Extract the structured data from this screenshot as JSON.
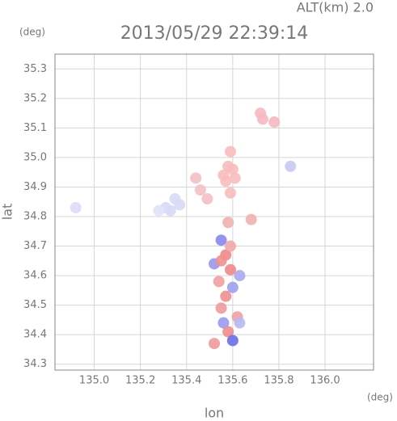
{
  "chart_data": {
    "type": "scatter",
    "title": "2013/05/29 22:39:14",
    "subtitle": "ALT(km) 2.0",
    "y_unit": "(deg)",
    "x_unit": "(deg)",
    "ylabel": "lat",
    "xlabel": "lon",
    "xlim": [
      134.83,
      136.21
    ],
    "ylim": [
      34.28,
      35.35
    ],
    "xticks": [
      {
        "value": 135,
        "label": "135.0"
      },
      135.2,
      135.4,
      135.6,
      135.8,
      {
        "value": 136,
        "label": "136.0"
      }
    ],
    "yticks": [
      34.3,
      34.4,
      34.5,
      34.6,
      34.7,
      34.8,
      34.9,
      {
        "value": 35,
        "label": "35.0"
      },
      35.1,
      35.2,
      35.3
    ],
    "grid": true,
    "x": [
      135.58,
      135.59,
      135.57,
      135.61,
      135.59,
      135.56,
      135.6,
      135.72,
      135.73,
      135.78,
      135.44,
      135.46,
      135.49,
      135.35,
      135.31,
      135.33,
      135.37,
      135.28,
      135.55,
      135.57,
      135.52,
      135.59,
      135.54,
      135.6,
      135.57,
      135.55,
      135.62,
      135.56,
      135.58,
      135.6,
      135.52,
      135.63,
      135.55,
      135.59,
      135.63,
      135.68,
      135.58,
      134.92,
      135.85
    ],
    "y": [
      34.97,
      35.02,
      34.92,
      34.93,
      34.88,
      34.94,
      34.96,
      35.15,
      35.13,
      35.12,
      34.93,
      34.89,
      34.86,
      34.86,
      34.83,
      34.82,
      34.84,
      34.82,
      34.72,
      34.67,
      34.64,
      34.62,
      34.58,
      34.56,
      34.53,
      34.49,
      34.46,
      34.44,
      34.41,
      34.38,
      34.37,
      34.44,
      34.65,
      34.7,
      34.6,
      34.79,
      34.78,
      34.83,
      34.97
    ],
    "colors": [
      "#f9bcbc",
      "#f9bcbc",
      "#f9bcbc",
      "#f9bcbc",
      "#f9bcbc",
      "#f9bcbc",
      "#f9bcbc",
      "#f6b8c0",
      "#f6b8c0",
      "#f4b8c0",
      "#f3c0c4",
      "#f3c0c4",
      "#f3c0c4",
      "#d8daf7",
      "#d8daf7",
      "#d8daf7",
      "#d8daf7",
      "#e0e2f8",
      "#8888ee",
      "#ee8888",
      "#9898ef",
      "#ee8888",
      "#f0a0a0",
      "#a0a0f0",
      "#ee9090",
      "#ef9a9a",
      "#f0a0a0",
      "#9999ee",
      "#ee8c8c",
      "#6b6be6",
      "#ee9a9a",
      "#b8b8f2",
      "#ef9090",
      "#f0a8a8",
      "#aaaaf0",
      "#f0b0b0",
      "#f0b0b0",
      "#dcdcf8",
      "#c8c8f4"
    ]
  }
}
